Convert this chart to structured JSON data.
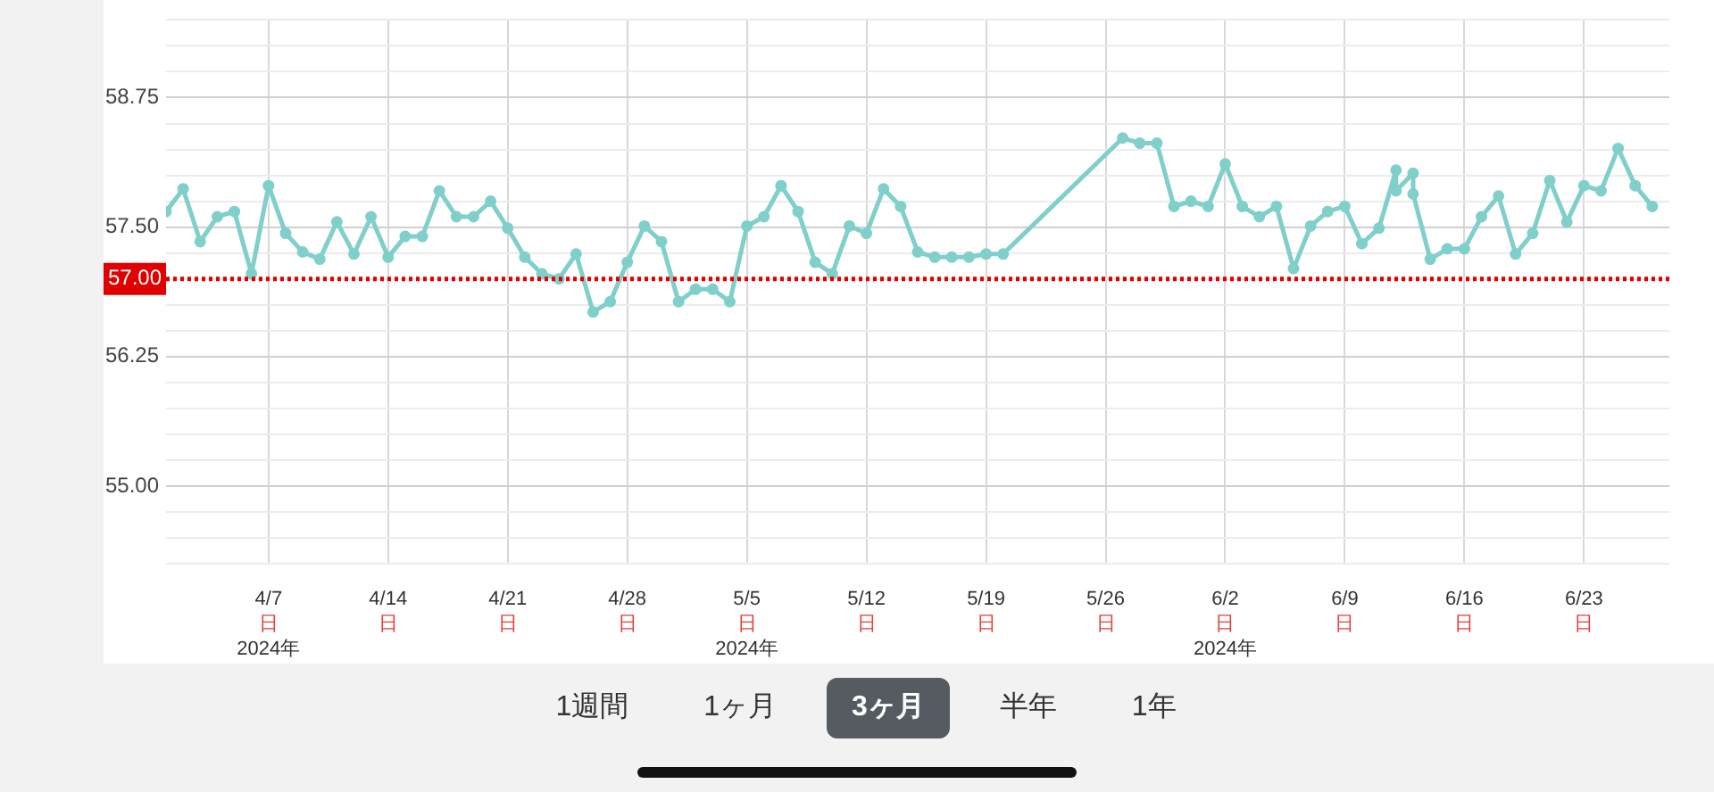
{
  "chart_data": {
    "type": "line",
    "x": [
      "2024-04-01",
      "2024-04-02",
      "2024-04-03",
      "2024-04-04",
      "2024-04-05",
      "2024-04-06",
      "2024-04-07",
      "2024-04-08",
      "2024-04-09",
      "2024-04-10",
      "2024-04-11",
      "2024-04-12",
      "2024-04-13",
      "2024-04-14",
      "2024-04-15",
      "2024-04-16",
      "2024-04-17",
      "2024-04-18",
      "2024-04-19",
      "2024-04-20",
      "2024-04-21",
      "2024-04-22",
      "2024-04-23",
      "2024-04-24",
      "2024-04-25",
      "2024-04-26",
      "2024-04-27",
      "2024-04-28",
      "2024-04-29",
      "2024-04-30",
      "2024-05-01",
      "2024-05-02",
      "2024-05-03",
      "2024-05-04",
      "2024-05-05",
      "2024-05-06",
      "2024-05-07",
      "2024-05-08",
      "2024-05-09",
      "2024-05-10",
      "2024-05-11",
      "2024-05-12",
      "2024-05-13",
      "2024-05-14",
      "2024-05-15",
      "2024-05-16",
      "2024-05-17",
      "2024-05-18",
      "2024-05-19",
      "2024-05-20",
      "2024-05-27",
      "2024-05-28",
      "2024-05-29",
      "2024-05-30",
      "2024-05-31",
      "2024-06-01",
      "2024-06-02",
      "2024-06-03",
      "2024-06-04",
      "2024-06-05",
      "2024-06-06",
      "2024-06-07",
      "2024-06-08",
      "2024-06-09",
      "2024-06-10",
      "2024-06-11",
      "2024-06-12",
      "2024-06-12",
      "2024-06-13",
      "2024-06-13",
      "2024-06-14",
      "2024-06-15",
      "2024-06-16",
      "2024-06-17",
      "2024-06-18",
      "2024-06-19",
      "2024-06-20",
      "2024-06-21",
      "2024-06-22",
      "2024-06-23",
      "2024-06-24",
      "2024-06-25",
      "2024-06-26",
      "2024-06-27"
    ],
    "series": [
      {
        "color": "#7fcfca",
        "values": [
          57.65,
          57.87,
          57.36,
          57.6,
          57.65,
          57.05,
          57.9,
          57.44,
          57.26,
          57.19,
          57.55,
          57.24,
          57.6,
          57.21,
          57.41,
          57.41,
          57.85,
          57.6,
          57.6,
          57.75,
          57.49,
          57.21,
          57.05,
          57.0,
          57.24,
          56.68,
          56.78,
          57.16,
          57.51,
          57.36,
          56.78,
          56.9,
          56.9,
          56.78,
          57.51,
          57.6,
          57.9,
          57.65,
          57.16,
          57.05,
          57.51,
          57.44,
          57.87,
          57.7,
          57.26,
          57.21,
          57.21,
          57.21,
          57.24,
          57.24,
          58.36,
          58.31,
          58.31,
          57.7,
          57.75,
          57.7,
          58.11,
          57.7,
          57.6,
          57.7,
          57.1,
          57.51,
          57.65,
          57.7,
          57.34,
          57.49,
          58.05,
          57.85,
          58.02,
          57.82,
          57.19,
          57.29,
          57.29,
          57.6,
          57.8,
          57.24,
          57.44,
          57.95,
          57.55,
          57.9,
          57.85,
          58.26,
          57.9,
          57.7
        ]
      }
    ],
    "xlim": [
      "2024-04-01",
      "2024-06-28"
    ],
    "xticks": [
      {
        "value": "2024-04-07",
        "label": "4/7\n日\n2024年"
      },
      {
        "value": "2024-04-14",
        "label": "4/14\n日"
      },
      {
        "value": "2024-04-21",
        "label": "4/21\n日"
      },
      {
        "value": "2024-04-28",
        "label": "4/28\n日"
      },
      {
        "value": "2024-05-05",
        "label": "5/5\n日\n2024年"
      },
      {
        "value": "2024-05-12",
        "label": "5/12\n日"
      },
      {
        "value": "2024-05-19",
        "label": "5/19\n日"
      },
      {
        "value": "2024-05-26",
        "label": "5/26\n日"
      },
      {
        "value": "2024-06-02",
        "label": "6/2\n日\n2024年"
      },
      {
        "value": "2024-06-09",
        "label": "6/9\n日"
      },
      {
        "value": "2024-06-16",
        "label": "6/16\n日"
      },
      {
        "value": "2024-06-23",
        "label": "6/23\n日"
      }
    ],
    "ylim": [
      54.25,
      59.5
    ],
    "yticks": [
      {
        "value": 54.25,
        "label": null
      },
      {
        "value": 54.5,
        "label": null
      },
      {
        "value": 54.75,
        "label": null
      },
      {
        "value": 55,
        "label": "55.00"
      },
      {
        "value": 55.25,
        "label": null
      },
      {
        "value": 55.5,
        "label": null
      },
      {
        "value": 55.75,
        "label": null
      },
      {
        "value": 56,
        "label": null
      },
      {
        "value": 56.25,
        "label": "56.25"
      },
      {
        "value": 56.5,
        "label": null
      },
      {
        "value": 56.75,
        "label": null
      },
      {
        "value": 57,
        "label": null
      },
      {
        "value": 57.25,
        "label": null
      },
      {
        "value": 57.5,
        "label": "57.50"
      },
      {
        "value": 57.75,
        "label": null
      },
      {
        "value": 58,
        "label": null
      },
      {
        "value": 58.25,
        "label": null
      },
      {
        "value": 58.5,
        "label": null
      },
      {
        "value": 58.75,
        "label": "58.75"
      },
      {
        "value": 59,
        "label": null
      },
      {
        "value": 59.25,
        "label": null
      },
      {
        "value": 59.5,
        "label": null
      }
    ],
    "ref_lines": [
      {
        "axis": "y",
        "value": 57,
        "label": "57.00",
        "color": "#e00000",
        "line_style": "dotted"
      }
    ],
    "grid": true,
    "marker": "circle",
    "line_style": "solid",
    "legend": false,
    "annotations": [
      "1週間",
      "1ヶ月",
      "3ヶ月",
      "半年",
      "1年"
    ]
  }
}
